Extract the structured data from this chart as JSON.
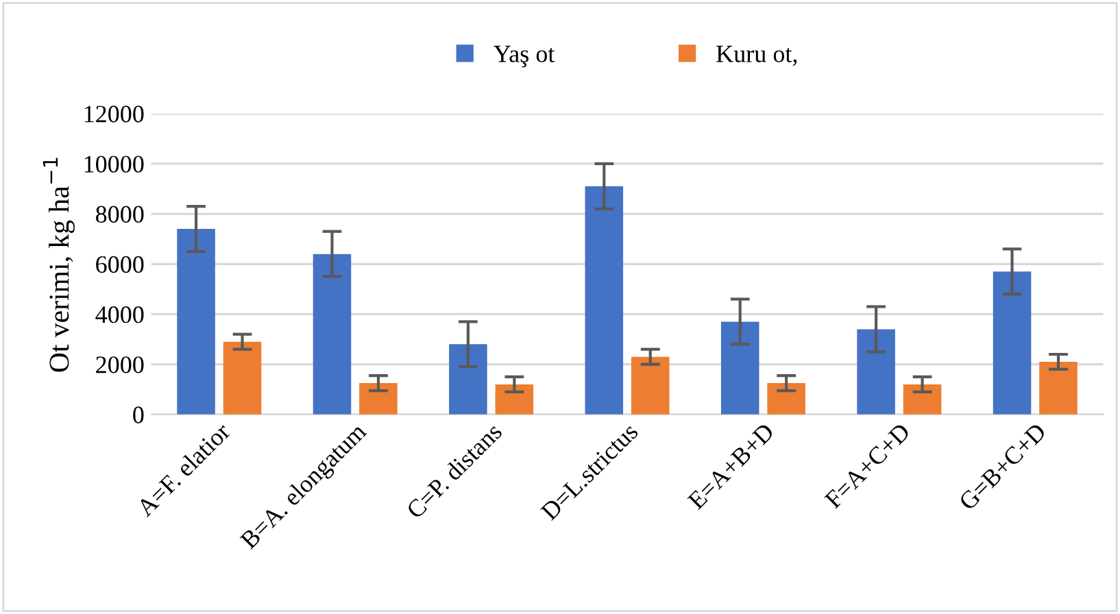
{
  "chart_data": {
    "type": "bar",
    "ylabel": "Ot verimi, kg ha$^{−1}$",
    "categories": [
      "A=F. elatior",
      "B=A. elongatum",
      "C=P. distans",
      "D=L.strictus",
      "E=A+B+D",
      "F=A+C+D",
      "G=B+C+D"
    ],
    "series": [
      {
        "name": "Yaş ot",
        "color": "#4472c4",
        "values": [
          7400,
          6400,
          2800,
          9100,
          3700,
          3400,
          5700
        ],
        "errors": [
          900,
          900,
          900,
          900,
          900,
          900,
          900
        ]
      },
      {
        "name": "Kuru ot,",
        "color": "#ed7d31",
        "values": [
          2900,
          1250,
          1200,
          2300,
          1250,
          1200,
          2100
        ],
        "errors": [
          300,
          300,
          300,
          300,
          300,
          300,
          300
        ]
      }
    ],
    "ylim": [
      0,
      12000
    ],
    "yticks": [
      0,
      2000,
      4000,
      6000,
      8000,
      10000,
      12000
    ],
    "grid": "y",
    "legend": "top"
  }
}
